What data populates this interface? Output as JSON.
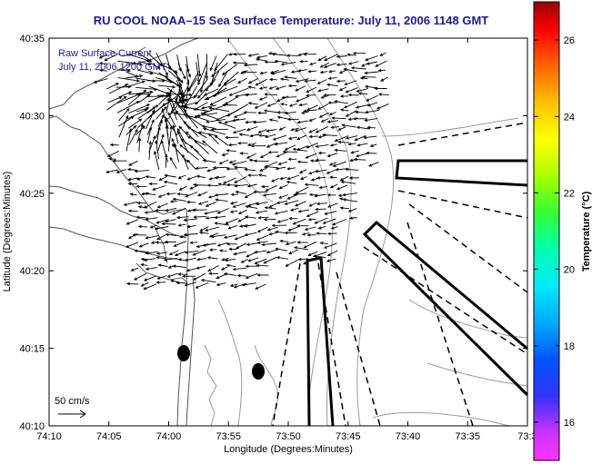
{
  "title": "RU COOL  NOAA–15  Sea Surface Temperature:  July 11, 2006 1148 GMT",
  "annotation": {
    "line1": "Raw Surface Current",
    "line2": "July 11, 2006 1200 GMT"
  },
  "axes": {
    "xlabel": "Longitude (Degrees:Minutes)",
    "ylabel": "Latitude (Degrees:Minutes)",
    "xticks": [
      "74:10",
      "74:05",
      "74:00",
      "73:55",
      "73:50",
      "73:45",
      "73:40",
      "73:35",
      "73:3"
    ],
    "yticks": [
      "40:35",
      "40:30",
      "40:25",
      "40:20",
      "40:15",
      "40:10"
    ]
  },
  "colorbar": {
    "label": "Temperature (°C)",
    "ticks": [
      "26",
      "24",
      "22",
      "20",
      "18",
      "16"
    ],
    "range": [
      15,
      27
    ]
  },
  "scale_vector": {
    "label": "50 cm/s"
  },
  "colors": {
    "title": "#1a1aa0",
    "annotation": "#1a1aa0",
    "coast": "#555555",
    "contour": "#9a9a9a",
    "vectors": "#000000"
  },
  "features": {
    "dots": 2,
    "channels": 3,
    "dashed_lanes": 6
  }
}
